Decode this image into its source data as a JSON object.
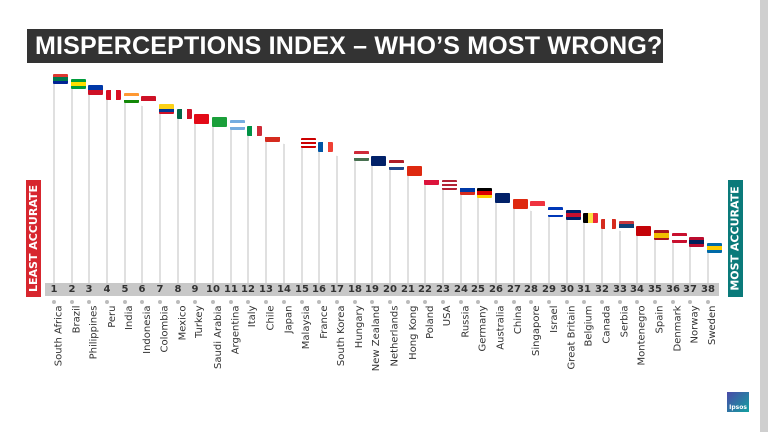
{
  "title": "MISPERCEPTIONS INDEX – WHO’S MOST WRONG?",
  "left_label": "LEAST ACCURATE",
  "right_label": "MOST ACCURATE",
  "logo_text": "Ipsos",
  "colors": {
    "least": "#d7262e",
    "most": "#0a7a7a",
    "title_bg": "#333333"
  },
  "countries": [
    {
      "rank": 1,
      "name": "South Africa",
      "flag": {
        "dir": "h",
        "c": [
          "#de3831",
          "#007a4d",
          "#002395"
        ]
      }
    },
    {
      "rank": 2,
      "name": "Brazil",
      "flag": {
        "dir": "h",
        "c": [
          "#009c3b",
          "#ffdf00",
          "#009c3b"
        ]
      }
    },
    {
      "rank": 3,
      "name": "Philippines",
      "flag": {
        "dir": "h",
        "c": [
          "#0038a8",
          "#ce1126"
        ]
      }
    },
    {
      "rank": 4,
      "name": "Peru",
      "flag": {
        "dir": "v",
        "c": [
          "#d91023",
          "#ffffff",
          "#d91023"
        ]
      }
    },
    {
      "rank": 5,
      "name": "India",
      "flag": {
        "dir": "h",
        "c": [
          "#ff9933",
          "#ffffff",
          "#138808"
        ]
      }
    },
    {
      "rank": 6,
      "name": "Indonesia",
      "flag": {
        "dir": "h",
        "c": [
          "#ce1126",
          "#ffffff"
        ]
      }
    },
    {
      "rank": 7,
      "name": "Colombia",
      "flag": {
        "dir": "h",
        "c": [
          "#fcd116",
          "#fcd116",
          "#003893",
          "#ce1126"
        ]
      }
    },
    {
      "rank": 8,
      "name": "Mexico",
      "flag": {
        "dir": "v",
        "c": [
          "#006847",
          "#ffffff",
          "#ce1126"
        ]
      }
    },
    {
      "rank": 9,
      "name": "Turkey",
      "flag": {
        "dir": "h",
        "c": [
          "#e30a17"
        ]
      }
    },
    {
      "rank": 10,
      "name": "Saudi Arabia",
      "flag": {
        "dir": "h",
        "c": [
          "#1a9f3a"
        ]
      }
    },
    {
      "rank": 11,
      "name": "Argentina",
      "flag": {
        "dir": "h",
        "c": [
          "#74acdf",
          "#ffffff",
          "#74acdf"
        ]
      }
    },
    {
      "rank": 12,
      "name": "Italy",
      "flag": {
        "dir": "v",
        "c": [
          "#009246",
          "#ffffff",
          "#ce2b37"
        ]
      }
    },
    {
      "rank": 13,
      "name": "Chile",
      "flag": {
        "dir": "h",
        "c": [
          "#ffffff",
          "#d52b1e"
        ]
      }
    },
    {
      "rank": 14,
      "name": "Japan",
      "flag": {
        "dir": "h",
        "c": [
          "#ffffff"
        ]
      }
    },
    {
      "rank": 15,
      "name": "Malaysia",
      "flag": {
        "dir": "h",
        "c": [
          "#cc0001",
          "#ffffff",
          "#cc0001",
          "#ffffff",
          "#cc0001"
        ]
      }
    },
    {
      "rank": 16,
      "name": "France",
      "flag": {
        "dir": "v",
        "c": [
          "#0055a4",
          "#ffffff",
          "#ef4135"
        ]
      }
    },
    {
      "rank": 17,
      "name": "South Korea",
      "flag": {
        "dir": "h",
        "c": [
          "#ffffff"
        ]
      }
    },
    {
      "rank": 18,
      "name": "Hungary",
      "flag": {
        "dir": "h",
        "c": [
          "#ce2939",
          "#ffffff",
          "#477050"
        ]
      }
    },
    {
      "rank": 19,
      "name": "New Zealand",
      "flag": {
        "dir": "h",
        "c": [
          "#012169"
        ]
      }
    },
    {
      "rank": 20,
      "name": "Netherlands",
      "flag": {
        "dir": "h",
        "c": [
          "#ae1c28",
          "#ffffff",
          "#21468b"
        ]
      }
    },
    {
      "rank": 21,
      "name": "Hong Kong",
      "flag": {
        "dir": "h",
        "c": [
          "#de2910"
        ]
      }
    },
    {
      "rank": 22,
      "name": "Poland",
      "flag": {
        "dir": "h",
        "c": [
          "#ffffff",
          "#dc143c"
        ]
      }
    },
    {
      "rank": 23,
      "name": "USA",
      "flag": {
        "dir": "h",
        "c": [
          "#b22234",
          "#ffffff",
          "#b22234",
          "#ffffff",
          "#b22234"
        ]
      }
    },
    {
      "rank": 24,
      "name": "Russia",
      "flag": {
        "dir": "h",
        "c": [
          "#ffffff",
          "#0039a6",
          "#d52b1e"
        ]
      }
    },
    {
      "rank": 25,
      "name": "Germany",
      "flag": {
        "dir": "h",
        "c": [
          "#000000",
          "#dd0000",
          "#ffce00"
        ]
      }
    },
    {
      "rank": 26,
      "name": "Australia",
      "flag": {
        "dir": "h",
        "c": [
          "#012169"
        ]
      }
    },
    {
      "rank": 27,
      "name": "China",
      "flag": {
        "dir": "h",
        "c": [
          "#de2910"
        ]
      }
    },
    {
      "rank": 28,
      "name": "Singapore",
      "flag": {
        "dir": "h",
        "c": [
          "#ef3340",
          "#ffffff"
        ]
      }
    },
    {
      "rank": 29,
      "name": "Israel",
      "flag": {
        "dir": "h",
        "c": [
          "#0038b8",
          "#ffffff",
          "#ffffff",
          "#0038b8"
        ]
      }
    },
    {
      "rank": 30,
      "name": "Great Britain",
      "flag": {
        "dir": "h",
        "c": [
          "#012169",
          "#c8102e",
          "#012169"
        ]
      }
    },
    {
      "rank": 31,
      "name": "Belgium",
      "flag": {
        "dir": "v",
        "c": [
          "#000000",
          "#fae042",
          "#ed2939"
        ]
      }
    },
    {
      "rank": 32,
      "name": "Canada",
      "flag": {
        "dir": "v",
        "c": [
          "#d52b1e",
          "#ffffff",
          "#ffffff",
          "#d52b1e"
        ]
      }
    },
    {
      "rank": 33,
      "name": "Serbia",
      "flag": {
        "dir": "h",
        "c": [
          "#c6363c",
          "#0c4076",
          "#ffffff"
        ]
      }
    },
    {
      "rank": 34,
      "name": "Montenegro",
      "flag": {
        "dir": "h",
        "c": [
          "#c40308"
        ]
      }
    },
    {
      "rank": 35,
      "name": "Spain",
      "flag": {
        "dir": "h",
        "c": [
          "#aa151b",
          "#f1bf00",
          "#f1bf00",
          "#aa151b"
        ]
      }
    },
    {
      "rank": 36,
      "name": "Denmark",
      "flag": {
        "dir": "h",
        "c": [
          "#c8102e",
          "#ffffff",
          "#c8102e"
        ]
      }
    },
    {
      "rank": 37,
      "name": "Norway",
      "flag": {
        "dir": "h",
        "c": [
          "#ba0c2f",
          "#00205b",
          "#ba0c2f"
        ]
      }
    },
    {
      "rank": 38,
      "name": "Sweden",
      "flag": {
        "dir": "h",
        "c": [
          "#006aa7",
          "#fecc00",
          "#006aa7"
        ]
      }
    }
  ]
}
